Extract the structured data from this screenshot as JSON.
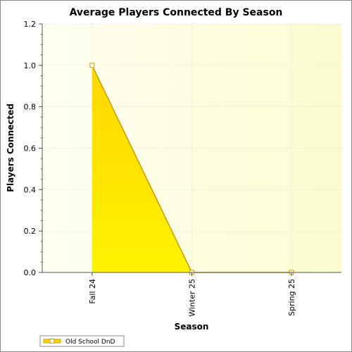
{
  "chart_data": {
    "type": "area",
    "title": "Average Players Connected By Season",
    "xlabel": "Season",
    "ylabel": "Players Connected",
    "categories": [
      "Fall 24",
      "Winter 25",
      "Spring 25"
    ],
    "series": [
      {
        "name": "Old School DnD",
        "values": [
          1.0,
          0.0,
          0.0
        ]
      }
    ],
    "ylim": [
      0,
      1.2
    ],
    "yticks": [
      "0.0",
      "0.2",
      "0.4",
      "0.6",
      "0.8",
      "1.0",
      "1.2"
    ],
    "grid": true,
    "legend": "bottom-left",
    "colors": {
      "area_top": "#ffd700",
      "area_bottom": "#fff200",
      "line": "#c8a000",
      "marker_fill": "#ffffff",
      "plot_bg_left": "#fffff2",
      "plot_bg_right": "#fbfbcf"
    }
  }
}
